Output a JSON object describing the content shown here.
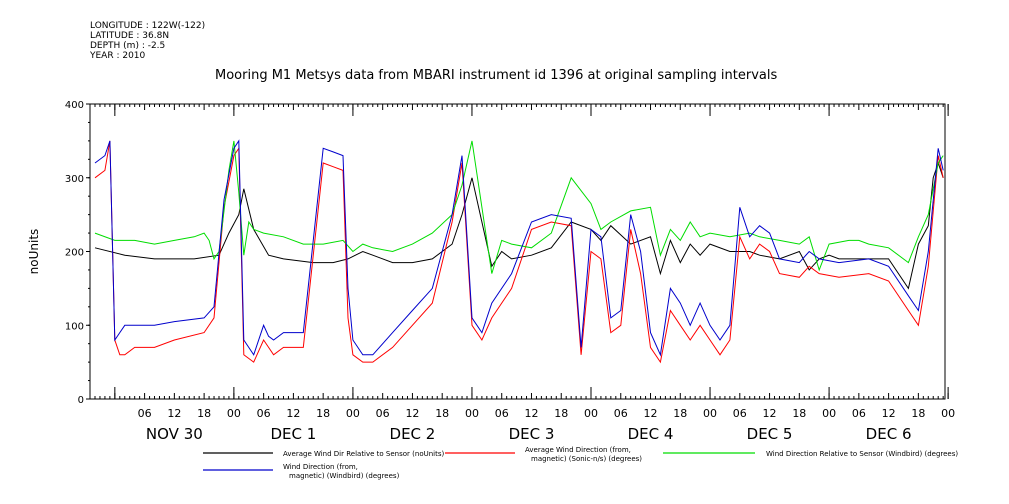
{
  "header": {
    "meta_lines": [
      "LONGITUDE : 122W(-122)",
      "LATITUDE : 36.8N",
      "DEPTH (m) : -2.5",
      "YEAR : 2010"
    ],
    "title": "Mooring M1 Metsys data from MBARI instrument id 1396 at original sampling intervals"
  },
  "chart_data": {
    "type": "line",
    "ylabel": "noUnits",
    "ylim": [
      0,
      400
    ],
    "yticks": [
      0,
      100,
      200,
      300,
      400
    ],
    "x_unit": "hours since 2010-11-30 00:00",
    "xlim": [
      -4,
      168
    ],
    "hour_ticks": [
      "06",
      "12",
      "18",
      "00",
      "06",
      "12",
      "18",
      "00",
      "06",
      "12",
      "18",
      "00",
      "06",
      "12",
      "18",
      "00",
      "06",
      "12",
      "18",
      "00",
      "06",
      "12",
      "18",
      "00",
      "06",
      "12",
      "18",
      "00"
    ],
    "day_labels": [
      "NOV 30",
      "DEC  1",
      "DEC  2",
      "DEC  3",
      "DEC  4",
      "DEC  5",
      "DEC  6"
    ],
    "grid": false,
    "series": [
      {
        "name": "Average Wind Dir Relative to Sensor (noUnits)",
        "color": "#000000",
        "x": [
          -4,
          2,
          8,
          16,
          21,
          23,
          25,
          26,
          28,
          31,
          34,
          40,
          44,
          47,
          50,
          52,
          56,
          60,
          64,
          68,
          70,
          72,
          74,
          76,
          78,
          80,
          84,
          88,
          92,
          96,
          98,
          100,
          104,
          108,
          110,
          112,
          114,
          116,
          118,
          120,
          124,
          128,
          130,
          134,
          138,
          140,
          142,
          144,
          146,
          148,
          150,
          152,
          156,
          160,
          162,
          164,
          165,
          166,
          167
        ],
        "y": [
          205,
          195,
          190,
          190,
          195,
          225,
          250,
          285,
          230,
          195,
          190,
          185,
          185,
          190,
          200,
          195,
          185,
          185,
          190,
          210,
          250,
          300,
          240,
          180,
          200,
          190,
          195,
          205,
          240,
          230,
          215,
          235,
          210,
          220,
          170,
          215,
          185,
          210,
          195,
          210,
          200,
          200,
          195,
          190,
          200,
          175,
          190,
          195,
          190,
          190,
          190,
          190,
          190,
          150,
          210,
          235,
          300,
          320,
          300
        ]
      },
      {
        "name": "Average Wind Direction (from, magnetic) (Sonic-n/s) (degrees)",
        "color": "#ff0000",
        "x": [
          -4,
          -2,
          -1,
          0,
          1,
          2,
          4,
          8,
          12,
          18,
          20,
          22,
          24,
          25,
          26,
          28,
          30,
          31,
          32,
          34,
          38,
          42,
          44,
          46,
          47,
          48,
          50,
          52,
          56,
          60,
          64,
          68,
          70,
          72,
          74,
          76,
          80,
          84,
          88,
          92,
          94,
          96,
          98,
          100,
          102,
          104,
          106,
          108,
          110,
          112,
          114,
          116,
          118,
          120,
          122,
          124,
          126,
          128,
          130,
          132,
          134,
          138,
          140,
          142,
          146,
          152,
          156,
          160,
          162,
          164,
          166,
          167
        ],
        "y": [
          300,
          310,
          350,
          80,
          60,
          60,
          70,
          70,
          80,
          90,
          110,
          260,
          330,
          340,
          60,
          50,
          80,
          70,
          60,
          70,
          70,
          320,
          315,
          310,
          110,
          60,
          50,
          50,
          70,
          100,
          130,
          240,
          320,
          100,
          80,
          110,
          150,
          230,
          240,
          235,
          60,
          200,
          190,
          90,
          100,
          230,
          170,
          70,
          50,
          120,
          100,
          80,
          100,
          80,
          60,
          80,
          220,
          190,
          210,
          200,
          170,
          165,
          180,
          170,
          165,
          170,
          160,
          120,
          100,
          180,
          330,
          300
        ]
      },
      {
        "name": "Wind Direction Relative to Sensor (Windbird) (degrees)",
        "color": "#00dd00",
        "x": [
          -4,
          0,
          4,
          8,
          12,
          16,
          18,
          19,
          20,
          21,
          22,
          23,
          24,
          25,
          26,
          27,
          28,
          30,
          34,
          38,
          42,
          46,
          48,
          50,
          52,
          56,
          60,
          64,
          68,
          70,
          72,
          74,
          76,
          78,
          80,
          84,
          88,
          92,
          96,
          98,
          100,
          104,
          108,
          110,
          112,
          114,
          116,
          118,
          120,
          124,
          128,
          130,
          134,
          138,
          140,
          142,
          144,
          148,
          150,
          152,
          156,
          160,
          162,
          164,
          166,
          167
        ],
        "y": [
          225,
          215,
          215,
          210,
          215,
          220,
          225,
          215,
          190,
          200,
          255,
          310,
          350,
          280,
          195,
          240,
          230,
          225,
          220,
          210,
          210,
          215,
          200,
          210,
          205,
          200,
          210,
          225,
          250,
          290,
          350,
          260,
          170,
          215,
          210,
          205,
          225,
          300,
          265,
          230,
          240,
          255,
          260,
          195,
          230,
          215,
          240,
          220,
          225,
          220,
          225,
          220,
          215,
          210,
          220,
          175,
          210,
          215,
          215,
          210,
          205,
          185,
          220,
          250,
          320,
          330
        ]
      },
      {
        "name": "Wind Direction (from, magnetic) (Windbird) (degrees)",
        "color": "#0000cc",
        "x": [
          -4,
          -2,
          -1,
          0,
          1,
          2,
          4,
          8,
          12,
          18,
          20,
          22,
          24,
          25,
          26,
          28,
          30,
          31,
          32,
          34,
          38,
          42,
          44,
          46,
          47,
          48,
          50,
          52,
          56,
          60,
          64,
          68,
          70,
          72,
          74,
          76,
          80,
          84,
          88,
          92,
          94,
          96,
          98,
          100,
          102,
          104,
          106,
          108,
          110,
          112,
          114,
          116,
          118,
          120,
          122,
          124,
          126,
          128,
          130,
          132,
          134,
          138,
          140,
          142,
          146,
          152,
          156,
          160,
          162,
          164,
          166,
          167
        ],
        "y": [
          320,
          330,
          350,
          80,
          90,
          100,
          100,
          100,
          105,
          110,
          125,
          270,
          340,
          350,
          80,
          60,
          100,
          85,
          80,
          90,
          90,
          340,
          335,
          330,
          150,
          80,
          60,
          60,
          90,
          120,
          150,
          250,
          330,
          110,
          90,
          130,
          170,
          240,
          250,
          245,
          70,
          230,
          220,
          110,
          120,
          250,
          200,
          90,
          60,
          150,
          130,
          100,
          130,
          100,
          80,
          100,
          260,
          220,
          235,
          225,
          190,
          185,
          200,
          190,
          185,
          190,
          180,
          140,
          120,
          200,
          340,
          310
        ]
      }
    ]
  }
}
